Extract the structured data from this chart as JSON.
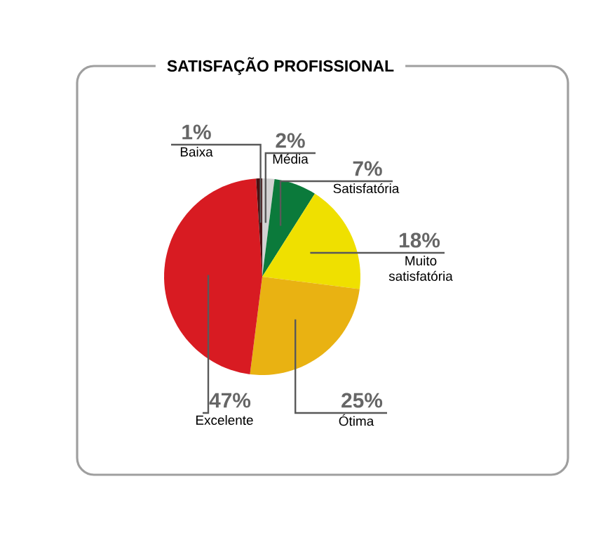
{
  "chart_data": {
    "type": "pie",
    "title": "SATISFAÇÃO PROFISSIONAL",
    "categories": [
      "Média",
      "Satisfatória",
      "Muito satisfatória",
      "Ótima",
      "Excelente",
      "Baixa"
    ],
    "values": [
      2,
      7,
      18,
      25,
      47,
      1
    ],
    "value_labels": [
      "2%",
      "7%",
      "18%",
      "25%",
      "47%",
      "1%"
    ],
    "colors": [
      "#d2d2d2",
      "#0b7a3b",
      "#efe000",
      "#e9b212",
      "#d81b22",
      "#4a1012"
    ]
  }
}
